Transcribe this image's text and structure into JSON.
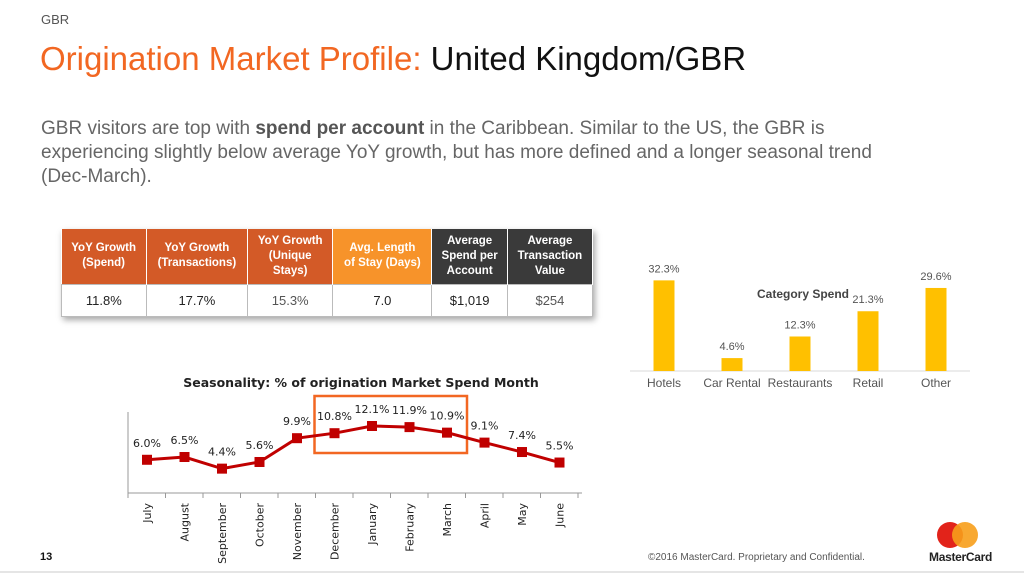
{
  "header": {
    "section": "GBR",
    "title_accent": "Origination Market Profile:",
    "title_rest": "United Kingdom/GBR"
  },
  "summary": {
    "part1": "GBR visitors are top with ",
    "bold": "spend per account",
    "part2": " in the Caribbean.  Similar to the US, the GBR is experiencing slightly below average YoY growth, but has more defined and a longer seasonal trend (Dec-March)."
  },
  "kpi_table": {
    "headers": [
      [
        "YoY Growth",
        "(Spend)"
      ],
      [
        "YoY Growth",
        "(Transactions)"
      ],
      [
        "YoY Growth",
        "(Unique",
        "Stays)"
      ],
      [
        "Avg. Length",
        "of Stay (Days)"
      ],
      [
        "Average",
        "Spend  per",
        "Account"
      ],
      [
        "Average",
        "Transaction",
        "Value"
      ]
    ],
    "values": [
      "11.8%",
      "17.7%",
      "15.3%",
      "7.0",
      "$1,019",
      "$254"
    ]
  },
  "colors": {
    "accent": "#f26722",
    "bar": "#ffc000",
    "line": "#c00000",
    "highlight_box": "#f26722",
    "header_dark": "#3a3a3a"
  },
  "chart_data": [
    {
      "type": "line",
      "title": "Seasonality: % of origination Market Spend Month",
      "categories": [
        "July",
        "August",
        "September",
        "October",
        "November",
        "December",
        "January",
        "February",
        "March",
        "April",
        "May",
        "June"
      ],
      "values": [
        6.0,
        6.5,
        4.4,
        5.6,
        9.9,
        10.8,
        12.1,
        11.9,
        10.9,
        9.1,
        7.4,
        5.5
      ],
      "labels": [
        "6.0%",
        "6.5%",
        "4.4%",
        "5.6%",
        "9.9%",
        "10.8%",
        "12.1%",
        "11.9%",
        "10.9%",
        "9.1%",
        "7.4%",
        "5.5%"
      ],
      "ylim": [
        0,
        14
      ],
      "grid": false,
      "highlight_range": [
        "December",
        "March"
      ]
    },
    {
      "type": "bar",
      "title": "Category Spend",
      "categories": [
        "Hotels",
        "Car Rental",
        "Restaurants",
        "Retail",
        "Other"
      ],
      "values": [
        32.3,
        4.6,
        12.3,
        21.3,
        29.6
      ],
      "labels": [
        "32.3%",
        "4.6%",
        "12.3%",
        "21.3%",
        "29.6%"
      ],
      "ylim": [
        0,
        36
      ],
      "grid": false
    }
  ],
  "footer": {
    "page_number": "13",
    "copyright": "©2016 MasterCard. Proprietary and Confidential.",
    "brand": "MasterCard"
  },
  "icons": {
    "logo": "mastercard-logo-icon"
  }
}
